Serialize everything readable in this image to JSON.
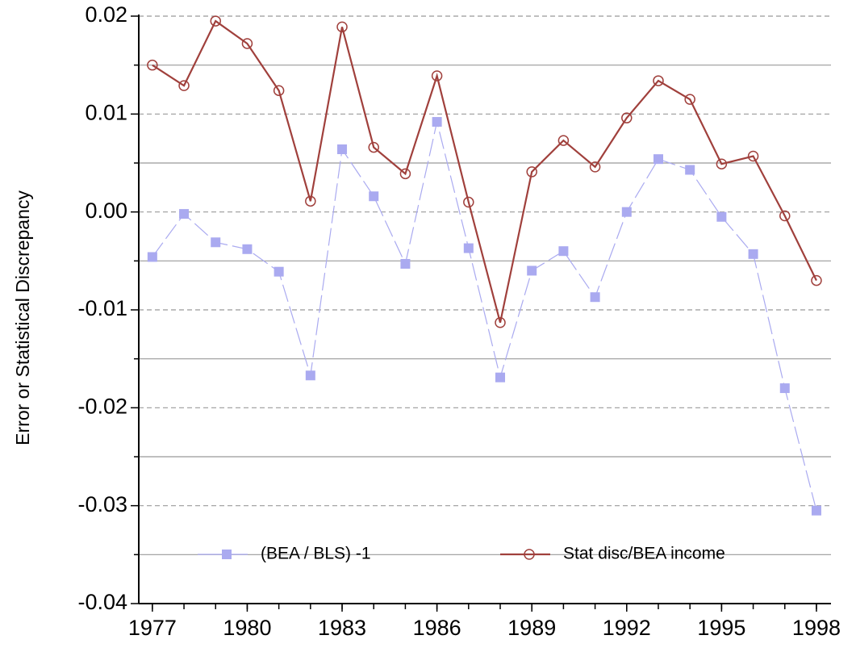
{
  "chart_data": {
    "type": "line",
    "ylabel": "Error or Statistical Discrepancy",
    "x": [
      1977,
      1978,
      1979,
      1980,
      1981,
      1982,
      1983,
      1984,
      1985,
      1986,
      1987,
      1988,
      1989,
      1990,
      1991,
      1992,
      1993,
      1994,
      1995,
      1996,
      1997,
      1998
    ],
    "series": [
      {
        "name": "(BEA / BLS) -1",
        "color": "#aaaaf0",
        "marker": "square",
        "dashed": true,
        "values": [
          -0.0046,
          -0.0002,
          -0.0031,
          -0.0038,
          -0.0061,
          -0.0167,
          0.0064,
          0.0016,
          -0.0053,
          0.0092,
          -0.0037,
          -0.0169,
          -0.006,
          -0.004,
          -0.0087,
          0.0,
          0.0054,
          0.0043,
          -0.0005,
          -0.0043,
          -0.018,
          -0.0305
        ]
      },
      {
        "name": "Stat disc/BEA income",
        "color": "#a0403c",
        "marker": "circle",
        "dashed": false,
        "values": [
          0.015,
          0.0129,
          0.0195,
          0.0172,
          0.0124,
          0.0011,
          0.0189,
          0.0066,
          0.0039,
          0.0139,
          0.001,
          -0.0113,
          0.0041,
          0.0073,
          0.0046,
          0.0096,
          0.0134,
          0.0115,
          0.0049,
          0.0057,
          -0.0004,
          -0.007
        ]
      }
    ],
    "xlim": [
      1976.57,
      1998.46
    ],
    "xticks": [
      1977,
      1980,
      1983,
      1986,
      1989,
      1992,
      1995,
      1998
    ],
    "ylim": [
      -0.04,
      0.02
    ],
    "yticks": [
      0.02,
      0.01,
      {
        "value": 0,
        "label": "0.00"
      },
      -0.01,
      -0.02,
      -0.03,
      -0.04
    ],
    "y_minor_ticks": [
      0.015,
      0.005,
      -0.005,
      -0.015,
      -0.025,
      -0.035
    ],
    "grid": true,
    "legend": "lower center"
  }
}
